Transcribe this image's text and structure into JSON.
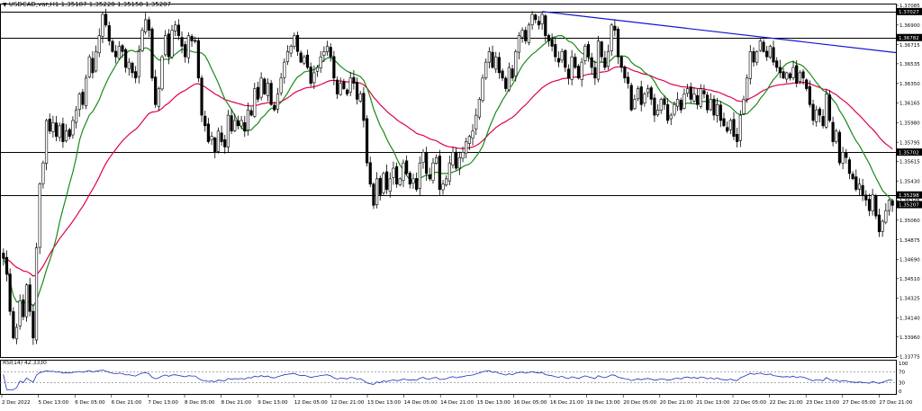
{
  "header": {
    "menu_arrow": "▼",
    "symbol": "USDCAD,var,H1",
    "ohlc": "1.35187 1.35228 1.35158 1.35207"
  },
  "rsi": {
    "label": "RSI(14) 42.3330",
    "ticks": [
      "100",
      "70",
      "30",
      "0"
    ]
  },
  "colors": {
    "background": "#ffffff",
    "candle": "#000000",
    "ma_fast": "#1a8a1a",
    "ma_slow": "#e0004a",
    "trendline": "#1414d2",
    "rsi_line": "#1c2fb8",
    "level_line": "#000000"
  },
  "chart_data": {
    "type": "candlestick",
    "ylim": [
      1.3377,
      1.37085
    ],
    "y_ticks": [
      "1.37085",
      "1.36900",
      "1.36715",
      "1.36535",
      "1.36350",
      "1.36165",
      "1.35980",
      "1.35795",
      "1.35615",
      "1.35430",
      "1.35245",
      "1.35060",
      "1.34875",
      "1.34690",
      "1.34510",
      "1.34325",
      "1.34140",
      "1.33960",
      "1.33775"
    ],
    "x_ticks": [
      "2 Dec 2022",
      "5 Dec 13:00",
      "6 Dec 05:00",
      "6 Dec 21:00",
      "7 Dec 13:00",
      "8 Dec 05:00",
      "8 Dec 21:00",
      "9 Dec 13:00",
      "12 Dec 05:00",
      "12 Dec 21:00",
      "13 Dec 13:00",
      "14 Dec 05:00",
      "14 Dec 21:00",
      "15 Dec 13:00",
      "16 Dec 05:00",
      "16 Dec 21:00",
      "19 Dec 13:00",
      "20 Dec 05:00",
      "20 Dec 21:00",
      "21 Dec 13:00",
      "22 Dec 05:00",
      "22 Dec 21:00",
      "23 Dec 13:00",
      "27 Dec 05:00",
      "27 Dec 21:00"
    ],
    "levels": [
      "1.37027",
      "1.36782",
      "1.35702",
      "1.35298"
    ],
    "current_price": "1.35207",
    "closes": [
      1.347,
      1.3455,
      1.342,
      1.3395,
      1.3405,
      1.343,
      1.3415,
      1.3445,
      1.342,
      1.3395,
      1.348,
      1.354,
      1.356,
      1.36,
      1.359,
      1.3598,
      1.3585,
      1.3595,
      1.358,
      1.359,
      1.3585,
      1.36,
      1.361,
      1.3625,
      1.3615,
      1.364,
      1.366,
      1.3645,
      1.3665,
      1.368,
      1.37,
      1.369,
      1.3675,
      1.3665,
      1.366,
      1.367,
      1.3665,
      1.365,
      1.3655,
      1.3645,
      1.364,
      1.3665,
      1.3685,
      1.3695,
      1.3685,
      1.364,
      1.3615,
      1.363,
      1.366,
      1.368,
      1.366,
      1.3685,
      1.369,
      1.368,
      1.367,
      1.366,
      1.368,
      1.3675,
      1.3675,
      1.364,
      1.3605,
      1.3595,
      1.358,
      1.3585,
      1.357,
      1.359,
      1.358,
      1.3575,
      1.3605,
      1.359,
      1.36,
      1.3595,
      1.36,
      1.359,
      1.361,
      1.3605,
      1.363,
      1.362,
      1.364,
      1.3625,
      1.3635,
      1.3615,
      1.361,
      1.3625,
      1.364,
      1.3655,
      1.3665,
      1.367,
      1.368,
      1.3665,
      1.3655,
      1.366,
      1.365,
      1.3635,
      1.3645,
      1.365,
      1.366,
      1.3665,
      1.367,
      1.366,
      1.364,
      1.3625,
      1.3635,
      1.363,
      1.3625,
      1.364,
      1.3635,
      1.362,
      1.3625,
      1.36,
      1.356,
      1.354,
      1.352,
      1.3545,
      1.353,
      1.355,
      1.3535,
      1.3545,
      1.3555,
      1.354,
      1.3545,
      1.356,
      1.355,
      1.354,
      1.3545,
      1.3535,
      1.356,
      1.357,
      1.355,
      1.3545,
      1.356,
      1.3565,
      1.3535,
      1.354,
      1.3545,
      1.356,
      1.357,
      1.3555,
      1.3565,
      1.357,
      1.358,
      1.3585,
      1.359,
      1.3605,
      1.362,
      1.364,
      1.3655,
      1.3665,
      1.365,
      1.366,
      1.3645,
      1.364,
      1.363,
      1.365,
      1.364,
      1.3665,
      1.368,
      1.3685,
      1.3675,
      1.369,
      1.37,
      1.3695,
      1.369,
      1.37,
      1.368,
      1.3675,
      1.367,
      1.366,
      1.3655,
      1.3665,
      1.365,
      1.364,
      1.366,
      1.365,
      1.364,
      1.3655,
      1.367,
      1.366,
      1.365,
      1.364,
      1.3675,
      1.366,
      1.365,
      1.3665,
      1.369,
      1.3685,
      1.366,
      1.365,
      1.364,
      1.3635,
      1.361,
      1.362,
      1.363,
      1.3615,
      1.3625,
      1.363,
      1.362,
      1.3605,
      1.361,
      1.362,
      1.3615,
      1.36,
      1.3605,
      1.3615,
      1.362,
      1.361,
      1.3625,
      1.363,
      1.362,
      1.3625,
      1.3615,
      1.363,
      1.3625,
      1.361,
      1.362,
      1.3605,
      1.3615,
      1.36,
      1.3595,
      1.359,
      1.36,
      1.3585,
      1.358,
      1.3605,
      1.362,
      1.364,
      1.3665,
      1.3655,
      1.3665,
      1.3675,
      1.3665,
      1.366,
      1.367,
      1.3655,
      1.365,
      1.3645,
      1.364,
      1.3645,
      1.364,
      1.365,
      1.3635,
      1.3645,
      1.364,
      1.363,
      1.3615,
      1.36,
      1.361,
      1.3605,
      1.3595,
      1.3625,
      1.36,
      1.358,
      1.359,
      1.356,
      1.357,
      1.3565,
      1.355,
      1.3545,
      1.3535,
      1.354,
      1.353,
      1.3525,
      1.3515,
      1.353,
      1.351,
      1.3495,
      1.3505,
      1.3515,
      1.3525,
      1.352
    ]
  }
}
